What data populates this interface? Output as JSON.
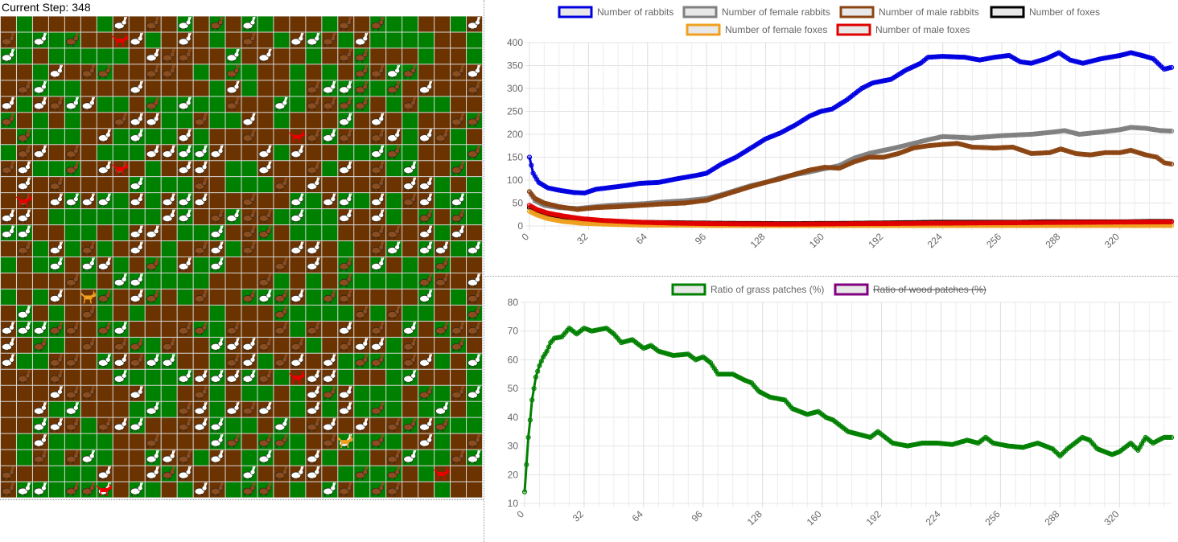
{
  "simulation": {
    "step_label": "Current Step:",
    "step_value": "348",
    "grid_cols": 30,
    "grid_rows": 30,
    "colors": {
      "grass": "#008000",
      "wood": "#6b3300",
      "gridline": "#d8d8d8",
      "rabbit_white": "#ffffff",
      "rabbit_brown": "#8b4c1e",
      "fox_red": "#e80000",
      "fox_orange": "#f0a020"
    }
  },
  "chart_data": [
    {
      "type": "line",
      "title": "",
      "xlabel": "",
      "ylabel": "",
      "ylim": [
        0,
        400
      ],
      "xlim": [
        0,
        348
      ],
      "x_ticks": [
        "0",
        "32",
        "64",
        "96",
        "128",
        "160",
        "192",
        "224",
        "256",
        "288",
        "320"
      ],
      "y_ticks": [
        "0",
        "50",
        "100",
        "150",
        "200",
        "250",
        "300",
        "350",
        "400"
      ],
      "grid": true,
      "legend_position": "top",
      "series": [
        {
          "name": "Number of rabbits",
          "color": "#0000e0",
          "hidden": false,
          "points": [
            [
              0,
              150
            ],
            [
              2,
              115
            ],
            [
              5,
              95
            ],
            [
              10,
              83
            ],
            [
              16,
              78
            ],
            [
              24,
              73
            ],
            [
              30,
              72
            ],
            [
              36,
              80
            ],
            [
              44,
              84
            ],
            [
              52,
              88
            ],
            [
              60,
              93
            ],
            [
              70,
              95
            ],
            [
              80,
              103
            ],
            [
              90,
              110
            ],
            [
              96,
              115
            ],
            [
              104,
              135
            ],
            [
              112,
              150
            ],
            [
              120,
              170
            ],
            [
              128,
              190
            ],
            [
              136,
              203
            ],
            [
              144,
              220
            ],
            [
              152,
              240
            ],
            [
              158,
              250
            ],
            [
              164,
              255
            ],
            [
              172,
              275
            ],
            [
              180,
              300
            ],
            [
              186,
              312
            ],
            [
              196,
              320
            ],
            [
              204,
              340
            ],
            [
              212,
              355
            ],
            [
              216,
              368
            ],
            [
              224,
              370
            ],
            [
              236,
              368
            ],
            [
              244,
              362
            ],
            [
              252,
              368
            ],
            [
              260,
              372
            ],
            [
              266,
              358
            ],
            [
              272,
              355
            ],
            [
              280,
              365
            ],
            [
              287,
              378
            ],
            [
              293,
              362
            ],
            [
              300,
              355
            ],
            [
              310,
              365
            ],
            [
              320,
              372
            ],
            [
              326,
              378
            ],
            [
              332,
              372
            ],
            [
              338,
              365
            ],
            [
              344,
              342
            ],
            [
              348,
              346
            ]
          ]
        },
        {
          "name": "Number of female rabbits",
          "color": "#808080",
          "hidden": false,
          "points": [
            [
              0,
              75
            ],
            [
              3,
              55
            ],
            [
              8,
              45
            ],
            [
              16,
              40
            ],
            [
              26,
              38
            ],
            [
              36,
              42
            ],
            [
              48,
              46
            ],
            [
              60,
              48
            ],
            [
              72,
              52
            ],
            [
              84,
              55
            ],
            [
              96,
              60
            ],
            [
              104,
              68
            ],
            [
              112,
              78
            ],
            [
              120,
              88
            ],
            [
              128,
              95
            ],
            [
              136,
              105
            ],
            [
              144,
              112
            ],
            [
              152,
              118
            ],
            [
              160,
              125
            ],
            [
              168,
              132
            ],
            [
              176,
              148
            ],
            [
              184,
              158
            ],
            [
              192,
              165
            ],
            [
              200,
              172
            ],
            [
              208,
              180
            ],
            [
              216,
              188
            ],
            [
              224,
              195
            ],
            [
              240,
              192
            ],
            [
              256,
              197
            ],
            [
              272,
              200
            ],
            [
              284,
              205
            ],
            [
              290,
              208
            ],
            [
              298,
              200
            ],
            [
              310,
              205
            ],
            [
              320,
              210
            ],
            [
              326,
              215
            ],
            [
              334,
              213
            ],
            [
              342,
              208
            ],
            [
              348,
              207
            ]
          ]
        },
        {
          "name": "Number of male rabbits",
          "color": "#8b4513",
          "hidden": false,
          "points": [
            [
              0,
              75
            ],
            [
              3,
              60
            ],
            [
              8,
              50
            ],
            [
              16,
              42
            ],
            [
              26,
              36
            ],
            [
              36,
              40
            ],
            [
              48,
              42
            ],
            [
              60,
              45
            ],
            [
              72,
              48
            ],
            [
              84,
              50
            ],
            [
              96,
              56
            ],
            [
              104,
              66
            ],
            [
              112,
              76
            ],
            [
              120,
              86
            ],
            [
              128,
              95
            ],
            [
              136,
              103
            ],
            [
              144,
              113
            ],
            [
              152,
              122
            ],
            [
              160,
              128
            ],
            [
              168,
              126
            ],
            [
              176,
              140
            ],
            [
              184,
              150
            ],
            [
              192,
              150
            ],
            [
              200,
              158
            ],
            [
              208,
              170
            ],
            [
              216,
              175
            ],
            [
              224,
              178
            ],
            [
              232,
              180
            ],
            [
              240,
              172
            ],
            [
              252,
              170
            ],
            [
              262,
              172
            ],
            [
              272,
              158
            ],
            [
              282,
              160
            ],
            [
              288,
              168
            ],
            [
              296,
              158
            ],
            [
              304,
              155
            ],
            [
              312,
              160
            ],
            [
              320,
              160
            ],
            [
              326,
              165
            ],
            [
              334,
              155
            ],
            [
              340,
              150
            ],
            [
              344,
              138
            ],
            [
              348,
              135
            ]
          ]
        },
        {
          "name": "Number of foxes",
          "color": "#000000",
          "hidden": false,
          "points": [
            [
              0,
              40
            ],
            [
              4,
              32
            ],
            [
              10,
              24
            ],
            [
              18,
              18
            ],
            [
              28,
              12
            ],
            [
              40,
              9
            ],
            [
              60,
              8
            ],
            [
              80,
              7
            ],
            [
              100,
              6
            ],
            [
              140,
              5
            ],
            [
              180,
              6
            ],
            [
              220,
              8
            ],
            [
              240,
              8
            ],
            [
              260,
              8
            ],
            [
              280,
              9
            ],
            [
              300,
              9
            ],
            [
              320,
              9
            ],
            [
              340,
              10
            ],
            [
              348,
              10
            ]
          ]
        },
        {
          "name": "Number of female foxes",
          "color": "#f0a020",
          "hidden": false,
          "points": [
            [
              0,
              32
            ],
            [
              4,
              24
            ],
            [
              10,
              16
            ],
            [
              18,
              10
            ],
            [
              28,
              6
            ],
            [
              40,
              4
            ],
            [
              60,
              2
            ],
            [
              80,
              2
            ],
            [
              100,
              1
            ],
            [
              140,
              1
            ],
            [
              180,
              1
            ],
            [
              220,
              1
            ],
            [
              260,
              1
            ],
            [
              300,
              1
            ],
            [
              348,
              1
            ]
          ]
        },
        {
          "name": "Number of male foxes",
          "color": "#e00000",
          "hidden": false,
          "points": [
            [
              0,
              45
            ],
            [
              4,
              36
            ],
            [
              10,
              28
            ],
            [
              18,
              22
            ],
            [
              28,
              16
            ],
            [
              40,
              12
            ],
            [
              60,
              8
            ],
            [
              80,
              6
            ],
            [
              100,
              5
            ],
            [
              140,
              4
            ],
            [
              180,
              5
            ],
            [
              220,
              6
            ],
            [
              260,
              7
            ],
            [
              300,
              8
            ],
            [
              348,
              9
            ]
          ]
        }
      ]
    },
    {
      "type": "line",
      "title": "",
      "xlabel": "",
      "ylabel": "",
      "ylim": [
        10,
        80
      ],
      "xlim": [
        0,
        348
      ],
      "x_ticks": [
        "0",
        "32",
        "64",
        "96",
        "128",
        "160",
        "192",
        "224",
        "256",
        "288",
        "320"
      ],
      "y_ticks": [
        "10",
        "20",
        "30",
        "40",
        "50",
        "60",
        "70",
        "80"
      ],
      "grid": true,
      "legend_position": "top",
      "series": [
        {
          "name": "Ratio of grass patches (%)",
          "color": "#008000",
          "hidden": false,
          "points": [
            [
              0,
              14
            ],
            [
              1,
              23.5
            ],
            [
              2,
              33
            ],
            [
              3,
              39
            ],
            [
              4,
              46
            ],
            [
              5,
              50
            ],
            [
              6,
              54
            ],
            [
              8,
              58
            ],
            [
              10,
              61
            ],
            [
              12,
              63
            ],
            [
              14,
              66
            ],
            [
              16,
              67.5
            ],
            [
              20,
              68
            ],
            [
              24,
              71
            ],
            [
              28,
              69
            ],
            [
              32,
              71
            ],
            [
              36,
              70
            ],
            [
              40,
              70.5
            ],
            [
              44,
              71
            ],
            [
              48,
              69
            ],
            [
              52,
              66
            ],
            [
              58,
              67
            ],
            [
              64,
              64
            ],
            [
              68,
              65
            ],
            [
              72,
              63
            ],
            [
              80,
              61.5
            ],
            [
              88,
              62
            ],
            [
              92,
              60
            ],
            [
              96,
              61
            ],
            [
              100,
              59
            ],
            [
              104,
              55
            ],
            [
              112,
              55
            ],
            [
              118,
              53
            ],
            [
              122,
              52
            ],
            [
              126,
              49
            ],
            [
              132,
              47
            ],
            [
              140,
              46
            ],
            [
              144,
              43
            ],
            [
              152,
              41
            ],
            [
              158,
              42
            ],
            [
              162,
              40
            ],
            [
              166,
              39
            ],
            [
              170,
              37
            ],
            [
              174,
              35
            ],
            [
              180,
              34
            ],
            [
              186,
              33
            ],
            [
              190,
              35
            ],
            [
              194,
              33
            ],
            [
              198,
              31
            ],
            [
              206,
              30
            ],
            [
              214,
              31
            ],
            [
              222,
              31
            ],
            [
              230,
              30.5
            ],
            [
              238,
              32
            ],
            [
              244,
              31
            ],
            [
              248,
              33
            ],
            [
              252,
              31
            ],
            [
              260,
              30
            ],
            [
              268,
              29.5
            ],
            [
              276,
              31
            ],
            [
              284,
              29
            ],
            [
              288,
              26.5
            ],
            [
              292,
              29
            ],
            [
              296,
              31
            ],
            [
              300,
              33
            ],
            [
              304,
              32
            ],
            [
              308,
              29
            ],
            [
              316,
              27
            ],
            [
              320,
              28
            ],
            [
              326,
              31
            ],
            [
              330,
              28.5
            ],
            [
              334,
              33
            ],
            [
              338,
              31
            ],
            [
              344,
              33
            ],
            [
              348,
              33
            ]
          ]
        },
        {
          "name": "Ratio of wood patches (%)",
          "color": "#800080",
          "hidden": true,
          "points": []
        }
      ]
    }
  ]
}
